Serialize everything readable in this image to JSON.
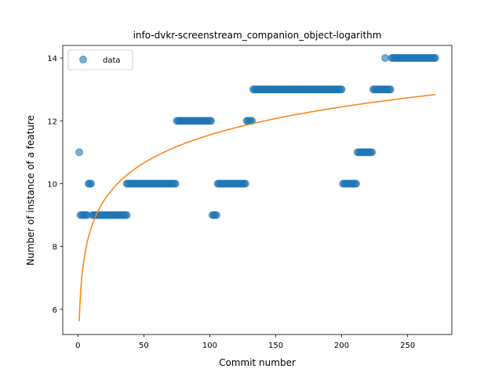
{
  "chart_data": {
    "type": "scatter",
    "title": "info-dvkr-screenstream_companion_object-logarithm",
    "xlabel": "Commit number",
    "ylabel": "Number of instance of a feature",
    "xlim": [
      -11.5,
      283.5
    ],
    "ylim": [
      5.2,
      14.4
    ],
    "xticks": [
      0,
      50,
      100,
      150,
      200,
      250
    ],
    "yticks": [
      6,
      8,
      10,
      12,
      14
    ],
    "grid": false,
    "legend": {
      "position": "top-left",
      "entries": [
        "data"
      ]
    },
    "colors": {
      "data": "#1f77b4",
      "fit": "#ff7f0e"
    },
    "series": [
      {
        "name": "data",
        "kind": "scatter",
        "segments": [
          {
            "x_start": 1,
            "x_end": 1,
            "y": 11
          },
          {
            "x_start": 2,
            "x_end": 7,
            "y": 9
          },
          {
            "x_start": 8,
            "x_end": 10,
            "y": 10
          },
          {
            "x_start": 11,
            "x_end": 37,
            "y": 9
          },
          {
            "x_start": 37,
            "x_end": 74,
            "y": 10
          },
          {
            "x_start": 75,
            "x_end": 101,
            "y": 12
          },
          {
            "x_start": 102,
            "x_end": 105,
            "y": 9
          },
          {
            "x_start": 106,
            "x_end": 127,
            "y": 10
          },
          {
            "x_start": 128,
            "x_end": 132,
            "y": 12
          },
          {
            "x_start": 133,
            "x_end": 200,
            "y": 13
          },
          {
            "x_start": 201,
            "x_end": 211,
            "y": 10
          },
          {
            "x_start": 212,
            "x_end": 223,
            "y": 11
          },
          {
            "x_start": 224,
            "x_end": 237,
            "y": 13
          },
          {
            "x_start": 233,
            "x_end": 233,
            "y": 14
          },
          {
            "x_start": 238,
            "x_end": 271,
            "y": 14
          }
        ]
      },
      {
        "kind": "line",
        "model": "logarithmic",
        "a": 5.62,
        "b": 1.288,
        "x_range": [
          1,
          271
        ]
      }
    ]
  }
}
